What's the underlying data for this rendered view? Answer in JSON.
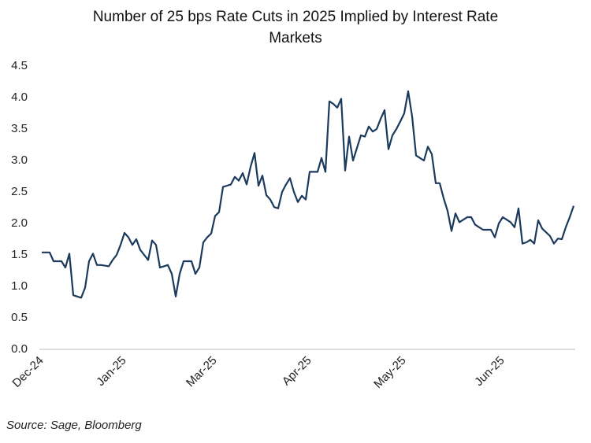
{
  "chart_data": {
    "type": "line",
    "title": "Number of 25 bps Rate Cuts in 2025 Implied by Interest Rate Markets",
    "source": "Source: Sage, Bloomberg",
    "categories": [
      "Dec-24",
      null,
      null,
      null,
      null,
      null,
      null,
      null,
      null,
      null,
      null,
      null,
      null,
      null,
      null,
      null,
      null,
      null,
      null,
      null,
      null,
      "Jan-25",
      null,
      null,
      null,
      null,
      null,
      null,
      null,
      null,
      null,
      null,
      null,
      null,
      null,
      null,
      null,
      null,
      null,
      null,
      null,
      null,
      null,
      null,
      "Mar-25",
      null,
      null,
      null,
      null,
      null,
      null,
      null,
      null,
      null,
      null,
      null,
      null,
      null,
      null,
      null,
      null,
      null,
      null,
      null,
      null,
      null,
      null,
      null,
      "Apr-25",
      null,
      null,
      null,
      null,
      null,
      null,
      null,
      null,
      null,
      null,
      null,
      null,
      null,
      null,
      null,
      null,
      null,
      null,
      null,
      null,
      null,
      null,
      null,
      "May-25",
      null,
      null,
      null,
      null,
      null,
      null,
      null,
      null,
      null,
      null,
      null,
      null,
      null,
      null,
      null,
      null,
      null,
      null,
      null,
      null,
      null,
      null,
      null,
      null,
      "Jun-25",
      null,
      null,
      null,
      null,
      null,
      null,
      null,
      null,
      null,
      null,
      null,
      null,
      null,
      null,
      null,
      null,
      null,
      null
    ],
    "series": [
      {
        "color": "#1b3a5c",
        "values": [
          1.54,
          1.54,
          1.54,
          1.4,
          1.4,
          1.4,
          1.3,
          1.52,
          0.86,
          0.84,
          0.82,
          0.98,
          1.4,
          1.52,
          1.34,
          1.34,
          1.33,
          1.32,
          1.42,
          1.5,
          1.66,
          1.85,
          1.78,
          1.66,
          1.75,
          1.58,
          1.5,
          1.42,
          1.73,
          1.66,
          1.3,
          1.32,
          1.34,
          1.2,
          0.84,
          1.2,
          1.4,
          1.4,
          1.4,
          1.2,
          1.3,
          1.7,
          1.78,
          1.84,
          2.12,
          2.18,
          2.58,
          2.6,
          2.62,
          2.74,
          2.68,
          2.8,
          2.62,
          2.9,
          3.12,
          2.6,
          2.76,
          2.45,
          2.38,
          2.26,
          2.24,
          2.5,
          2.62,
          2.72,
          2.5,
          2.34,
          2.44,
          2.38,
          2.82,
          2.82,
          2.82,
          3.04,
          2.82,
          3.94,
          3.9,
          3.84,
          3.98,
          2.84,
          3.38,
          3.0,
          3.2,
          3.4,
          3.38,
          3.54,
          3.46,
          3.5,
          3.66,
          3.8,
          3.18,
          3.4,
          3.5,
          3.62,
          3.75,
          4.1,
          3.7,
          3.08,
          3.04,
          3.0,
          3.22,
          3.1,
          2.64,
          2.64,
          2.4,
          2.2,
          1.88,
          2.16,
          2.02,
          2.06,
          2.1,
          2.1,
          1.98,
          1.94,
          1.9,
          1.9,
          1.9,
          1.78,
          2.0,
          2.1,
          2.06,
          2.02,
          1.94,
          2.24,
          1.68,
          1.7,
          1.74,
          1.68,
          2.05,
          1.92,
          1.86,
          1.8,
          1.68,
          1.76,
          1.75,
          1.94,
          2.1,
          2.28
        ]
      }
    ],
    "ylim": [
      0,
      4.5
    ],
    "yticks": [
      {
        "value": 0,
        "label": "0.0"
      },
      0.5,
      {
        "value": 1,
        "label": "1.0"
      },
      1.5,
      {
        "value": 2,
        "label": "2.0"
      },
      2.5,
      {
        "value": 3,
        "label": "3.0"
      },
      3.5,
      {
        "value": 4,
        "label": "4.0"
      },
      4.5
    ]
  }
}
